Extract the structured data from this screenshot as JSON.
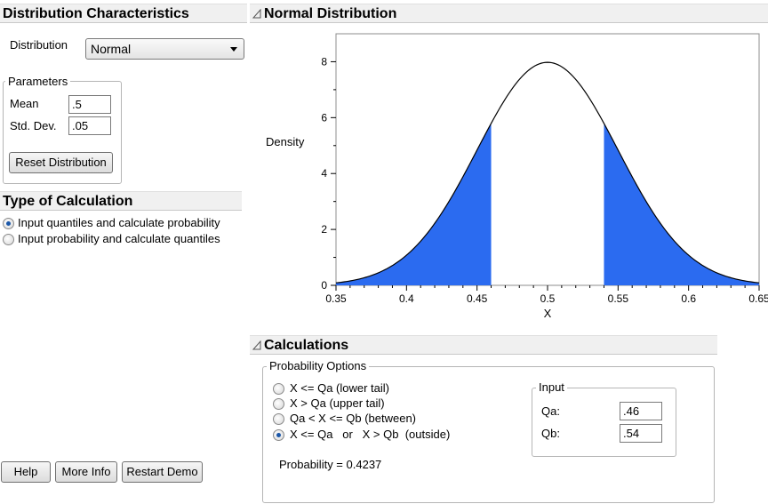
{
  "distribution_panel": {
    "title": "Distribution Characteristics",
    "distribution_label": "Distribution",
    "distribution_value": "Normal",
    "parameters_title": "Parameters",
    "mean_label": "Mean",
    "mean_value": ".5",
    "sd_label": "Std. Dev.",
    "sd_value": ".05",
    "reset_button": "Reset Distribution"
  },
  "type_panel": {
    "title": "Type of Calculation",
    "options": [
      {
        "label": "Input quantiles and calculate probability",
        "selected": true
      },
      {
        "label": "Input probability and calculate quantiles",
        "selected": false
      }
    ]
  },
  "footer_buttons": {
    "help": "Help",
    "more_info": "More Info",
    "restart": "Restart Demo"
  },
  "chart_panel": {
    "title": "Normal Distribution"
  },
  "chart_data": {
    "type": "area",
    "distribution": "normal",
    "mean": 0.5,
    "sd": 0.05,
    "xlabel": "X",
    "ylabel": "Density",
    "xlim": [
      0.35,
      0.65
    ],
    "ylim": [
      0,
      9
    ],
    "xticks": [
      "0.35",
      "0.4",
      "0.45",
      "0.5",
      "0.55",
      "0.6",
      "0.65"
    ],
    "yticks": [
      "0",
      "2",
      "4",
      "6",
      "8"
    ],
    "shaded_regions": [
      [
        0.35,
        0.46
      ],
      [
        0.54,
        0.65
      ]
    ],
    "shade_color": "#2b6bf0",
    "curve_color": "#000000"
  },
  "calculations": {
    "title": "Calculations",
    "options_title": "Probability Options",
    "options": [
      {
        "label": "X <= Qa (lower tail)",
        "selected": false
      },
      {
        "label": "X > Qa (upper tail)",
        "selected": false
      },
      {
        "label": "Qa < X <= Qb (between)",
        "selected": false
      },
      {
        "label": "X <= Qa   or   X > Qb  (outside)",
        "selected": true
      }
    ],
    "input_title": "Input",
    "qa_label": "Qa:",
    "qa_value": ".46",
    "qb_label": "Qb:",
    "qb_value": ".54",
    "probability_text": "Probability = 0.4237"
  },
  "colors": {
    "header_bg": "#f0f0f0",
    "accent": "#1b57a8"
  }
}
